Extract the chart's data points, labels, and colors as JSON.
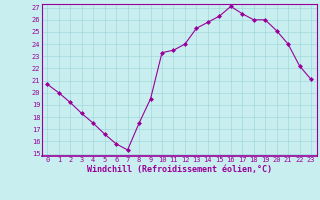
{
  "x": [
    0,
    1,
    2,
    3,
    4,
    5,
    6,
    7,
    8,
    9,
    10,
    11,
    12,
    13,
    14,
    15,
    16,
    17,
    18,
    19,
    20,
    21,
    22,
    23
  ],
  "y": [
    20.7,
    20.0,
    19.2,
    18.3,
    17.5,
    16.6,
    15.8,
    15.3,
    17.5,
    19.5,
    23.3,
    23.5,
    24.0,
    25.3,
    25.8,
    26.3,
    27.1,
    26.5,
    26.0,
    26.0,
    25.1,
    24.0,
    22.2,
    21.1
  ],
  "line_color": "#990099",
  "marker": "D",
  "marker_size": 2,
  "bg_color": "#c8eef0",
  "grid_color": "#a0d8dc",
  "xlabel": "Windchill (Refroidissement éolien,°C)",
  "xlabel_color": "#990099",
  "tick_color": "#990099",
  "spine_color": "#990099",
  "ylim": [
    15,
    27
  ],
  "yticks": [
    15,
    16,
    17,
    18,
    19,
    20,
    21,
    22,
    23,
    24,
    25,
    26,
    27
  ],
  "xticks": [
    0,
    1,
    2,
    3,
    4,
    5,
    6,
    7,
    8,
    9,
    10,
    11,
    12,
    13,
    14,
    15,
    16,
    17,
    18,
    19,
    20,
    21,
    22,
    23
  ]
}
